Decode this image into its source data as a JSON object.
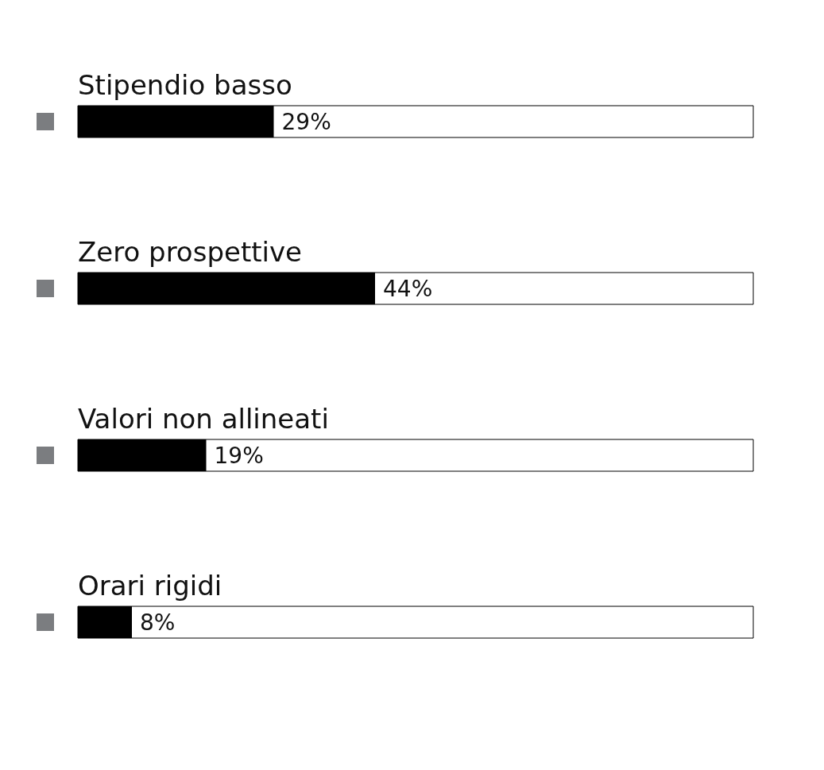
{
  "chart_data": {
    "type": "bar",
    "orientation": "horizontal",
    "categories": [
      "Stipendio basso",
      "Zero prospettive",
      "Valori non allineati",
      "Orari rigidi"
    ],
    "values": [
      29,
      44,
      19,
      8
    ],
    "value_labels": [
      "29%",
      "44%",
      "19%",
      "8%"
    ],
    "color": "#000000",
    "xlim": [
      0,
      100
    ],
    "tick_labels": false,
    "grid": false
  }
}
